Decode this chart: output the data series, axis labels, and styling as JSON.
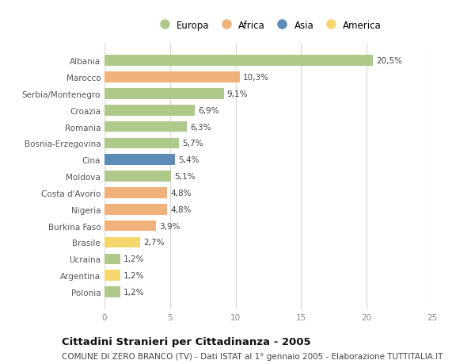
{
  "countries": [
    "Albania",
    "Marocco",
    "Serbia/Montenegro",
    "Croazia",
    "Romania",
    "Bosnia-Erzegovina",
    "Cina",
    "Moldova",
    "Costa d'Avorio",
    "Nigeria",
    "Burkina Faso",
    "Brasile",
    "Ucraina",
    "Argentina",
    "Polonia"
  ],
  "values": [
    20.5,
    10.3,
    9.1,
    6.9,
    6.3,
    5.7,
    5.4,
    5.1,
    4.8,
    4.8,
    3.9,
    2.7,
    1.2,
    1.2,
    1.2
  ],
  "labels": [
    "20,5%",
    "10,3%",
    "9,1%",
    "6,9%",
    "6,3%",
    "5,7%",
    "5,4%",
    "5,1%",
    "4,8%",
    "4,8%",
    "3,9%",
    "2,7%",
    "1,2%",
    "1,2%",
    "1,2%"
  ],
  "continents": [
    "Europa",
    "Africa",
    "Europa",
    "Europa",
    "Europa",
    "Europa",
    "Asia",
    "Europa",
    "Africa",
    "Africa",
    "Africa",
    "America",
    "Europa",
    "America",
    "Europa"
  ],
  "continent_colors": {
    "Europa": "#aec98a",
    "Africa": "#f0b27a",
    "Asia": "#5b8db8",
    "America": "#f5d76e"
  },
  "legend_order": [
    "Europa",
    "Africa",
    "Asia",
    "America"
  ],
  "xlim": [
    0,
    25
  ],
  "xticks": [
    0,
    5,
    10,
    15,
    20,
    25
  ],
  "title": "Cittadini Stranieri per Cittadinanza - 2005",
  "subtitle": "COMUNE DI ZERO BRANCO (TV) - Dati ISTAT al 1° gennaio 2005 - Elaborazione TUTTITALIA.IT",
  "bg_color": "#ffffff",
  "grid_color": "#d8d8d8",
  "bar_height": 0.65,
  "title_fontsize": 9.5,
  "subtitle_fontsize": 7.5,
  "label_fontsize": 7.5,
  "tick_fontsize": 7.5,
  "legend_fontsize": 8.5
}
